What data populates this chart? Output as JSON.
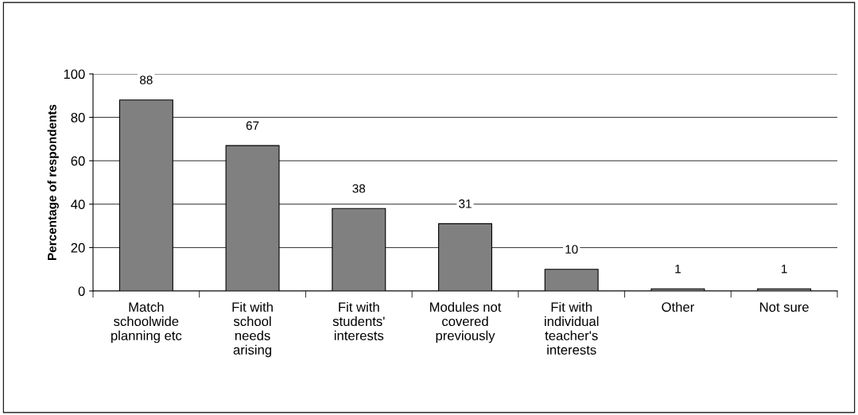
{
  "chart_data": {
    "type": "bar",
    "ylabel": "Percentage of respondents",
    "categories": [
      "Match\nschoolwide\nplanning etc",
      "Fit with\nschool\nneeds\narising",
      "Fit with\nstudents'\ninterests",
      "Modules not\ncovered\npreviously",
      "Fit with\nindividual\nteacher's\ninterests",
      "Other",
      "Not sure"
    ],
    "values": [
      88,
      67,
      38,
      31,
      10,
      1,
      1
    ],
    "color": "#808080",
    "ylim": [
      0,
      100
    ],
    "yticks": [
      0,
      20,
      40,
      60,
      80,
      100
    ],
    "grid": "y",
    "data_labels": true,
    "legend": false
  }
}
